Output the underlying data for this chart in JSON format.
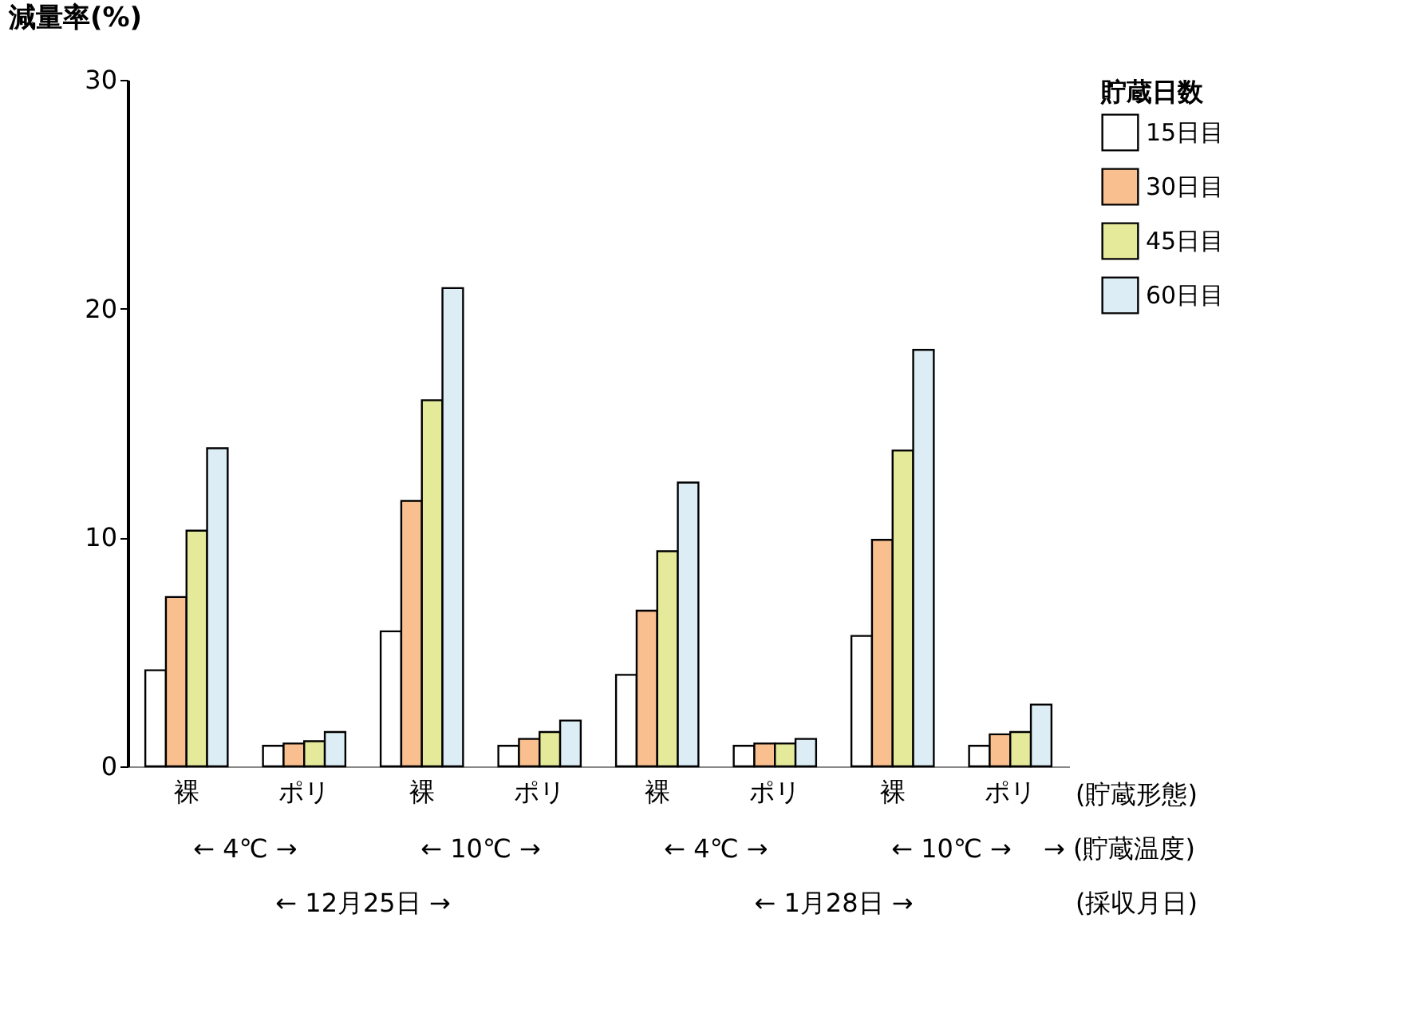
{
  "chart_data": {
    "type": "bar",
    "ylabel": "減量率(%)",
    "legend_title": "貯蔵日数",
    "legend": "top right",
    "grid": false,
    "categories": [
      "裸",
      "ポリ",
      "裸",
      "ポリ",
      "裸",
      "ポリ",
      "裸",
      "ポリ"
    ],
    "ylim": [
      0,
      30
    ],
    "yticks": [
      0,
      10,
      20,
      30
    ],
    "series": [
      {
        "name": "15日目",
        "color": "#ffffff",
        "values": [
          4.2,
          0.9,
          5.9,
          0.9,
          4.0,
          0.9,
          5.7,
          0.9
        ]
      },
      {
        "name": "30日目",
        "color": "#f9bf8f",
        "values": [
          7.4,
          1.0,
          11.6,
          1.2,
          6.8,
          1.0,
          9.9,
          1.4
        ]
      },
      {
        "name": "45日目",
        "color": "#e4ea9a",
        "values": [
          10.3,
          1.1,
          16.0,
          1.5,
          9.4,
          1.0,
          13.8,
          1.5
        ]
      },
      {
        "name": "60日目",
        "color": "#dcedf5",
        "values": [
          13.9,
          1.5,
          20.9,
          2.0,
          12.4,
          1.2,
          18.2,
          2.7
        ]
      }
    ],
    "annotations": [
      "(貯蔵形態)",
      "← 4℃ →",
      "← 10℃ →",
      "← 4℃ →",
      "← 10℃ →",
      "→ (貯蔵温度)",
      "← 12月25日 →",
      "← 1月28日 →",
      "(採収月日)"
    ]
  }
}
